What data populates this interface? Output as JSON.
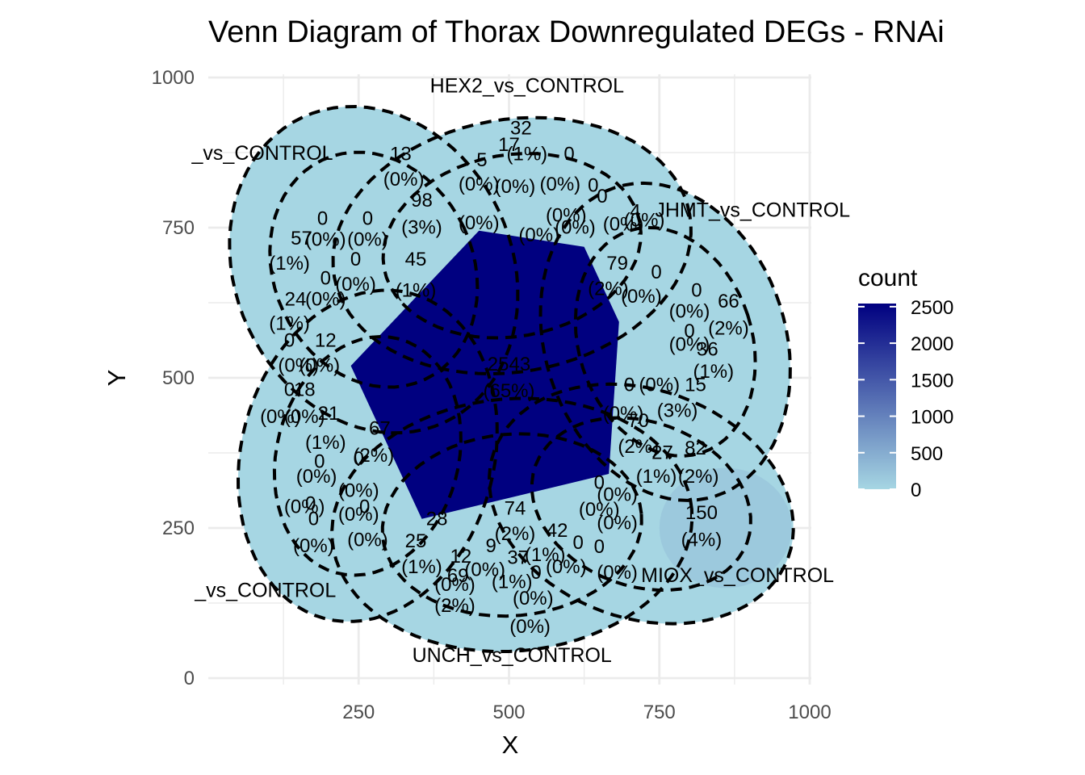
{
  "chart_data": {
    "type": "venn",
    "title": "Venn Diagram of Thorax Downregulated DEGs - RNAi",
    "xlabel": "X",
    "ylabel": "Y",
    "xlim": [
      0,
      1000
    ],
    "ylim": [
      0,
      1000
    ],
    "x_ticks": [
      "250",
      "500",
      "750",
      "1000"
    ],
    "y_ticks": [
      "0",
      "250",
      "500",
      "750",
      "1000"
    ],
    "x_tick_values": [
      250,
      500,
      750,
      1000
    ],
    "y_tick_values": [
      0,
      250,
      500,
      750,
      1000
    ],
    "set_labels": [
      {
        "text": "HEX2_vs_CONTROL",
        "x": 530,
        "y": 975
      },
      {
        "text": "JHMT_vs_CONTROL",
        "x": 905,
        "y": 768
      },
      {
        "text": "MIOX_vs_CONTROL",
        "x": 880,
        "y": 160
      },
      {
        "text": "UNCH_vs_CONTROL",
        "x": 505,
        "y": 27
      },
      {
        "text": "_vs_CONTROL",
        "x": 95,
        "y": 135
      },
      {
        "text": "_vs_CONTROL",
        "x": 90,
        "y": 863
      }
    ],
    "legend": {
      "title": "count",
      "position": "right",
      "breaks": [
        "2500",
        "2000",
        "1500",
        "1000",
        "500",
        "0"
      ],
      "break_values": [
        2500,
        2000,
        1500,
        1000,
        500,
        0
      ],
      "max": 2543,
      "low_color": "#a6d6e3",
      "high_color": "#000080"
    },
    "regions": [
      {
        "count": 2543,
        "pct": "65%"
      },
      {
        "count": 150,
        "pct": "4%"
      },
      {
        "count": 82,
        "pct": "2%"
      },
      {
        "count": 79,
        "pct": "2%"
      },
      {
        "count": 74,
        "pct": "2%"
      },
      {
        "count": 70,
        "pct": "2%"
      },
      {
        "count": 69,
        "pct": "2%"
      },
      {
        "count": 67,
        "pct": "2%"
      },
      {
        "count": 66,
        "pct": "2%"
      },
      {
        "count": 57,
        "pct": "1%"
      },
      {
        "count": 45,
        "pct": "1%"
      },
      {
        "count": 42,
        "pct": "1%"
      },
      {
        "count": 36,
        "pct": "1%"
      },
      {
        "count": 32,
        "pct": "1%"
      },
      {
        "count": 28,
        "pct": "1%"
      },
      {
        "count": 27,
        "pct": "1%"
      },
      {
        "count": 24,
        "pct": "1%"
      }
    ],
    "cell_labels": [
      {
        "text": "2543",
        "x": 500,
        "y": 512
      },
      {
        "text": "(65%)",
        "x": 500,
        "y": 468
      },
      {
        "text": "32",
        "x": 520,
        "y": 905
      },
      {
        "text": "17",
        "x": 500,
        "y": 878
      },
      {
        "text": "(1%)",
        "x": 530,
        "y": 862
      },
      {
        "text": "0",
        "x": 600,
        "y": 862
      },
      {
        "text": "13",
        "x": 320,
        "y": 862
      },
      {
        "text": "5",
        "x": 455,
        "y": 852
      },
      {
        "text": "(0%)",
        "x": 325,
        "y": 820
      },
      {
        "text": "(0%)",
        "x": 450,
        "y": 812
      },
      {
        "text": "(0%)",
        "x": 510,
        "y": 808
      },
      {
        "text": "(0%)",
        "x": 585,
        "y": 812
      },
      {
        "text": "0",
        "x": 640,
        "y": 810
      },
      {
        "text": "98",
        "x": 355,
        "y": 785
      },
      {
        "text": "(3%)",
        "x": 355,
        "y": 740
      },
      {
        "text": "(0%)",
        "x": 450,
        "y": 747
      },
      {
        "text": "(0%)",
        "x": 550,
        "y": 727
      },
      {
        "text": "(0%)",
        "x": 610,
        "y": 740
      },
      {
        "text": "0",
        "x": 190,
        "y": 755
      },
      {
        "text": "0",
        "x": 265,
        "y": 755
      },
      {
        "text": "57",
        "x": 155,
        "y": 722
      },
      {
        "text": "(0%)",
        "x": 195,
        "y": 720
      },
      {
        "text": "(0%)",
        "x": 265,
        "y": 720
      },
      {
        "text": "(1%)",
        "x": 135,
        "y": 680
      },
      {
        "text": "0",
        "x": 245,
        "y": 687
      },
      {
        "text": "45",
        "x": 345,
        "y": 687
      },
      {
        "text": "0",
        "x": 195,
        "y": 655
      },
      {
        "text": "(0%)",
        "x": 245,
        "y": 645
      },
      {
        "text": "(1%)",
        "x": 345,
        "y": 635
      },
      {
        "text": "24",
        "x": 145,
        "y": 620
      },
      {
        "text": "(0%)",
        "x": 195,
        "y": 620
      },
      {
        "text": "(1%)",
        "x": 135,
        "y": 580
      },
      {
        "text": "0",
        "x": 135,
        "y": 552
      },
      {
        "text": "12",
        "x": 195,
        "y": 552
      },
      {
        "text": "(0%)",
        "x": 150,
        "y": 510
      },
      {
        "text": "(0%)",
        "x": 185,
        "y": 510
      },
      {
        "text": "0",
        "x": 135,
        "y": 470
      },
      {
        "text": "18",
        "x": 160,
        "y": 470
      },
      {
        "text": "(0%)",
        "x": 120,
        "y": 425
      },
      {
        "text": "(0%)",
        "x": 160,
        "y": 425
      },
      {
        "text": "21",
        "x": 200,
        "y": 430
      },
      {
        "text": "67",
        "x": 285,
        "y": 405
      },
      {
        "text": "(1%)",
        "x": 195,
        "y": 382
      },
      {
        "text": "(2%)",
        "x": 275,
        "y": 360
      },
      {
        "text": "0",
        "x": 185,
        "y": 350
      },
      {
        "text": "0",
        "x": 250,
        "y": 355
      },
      {
        "text": "(0%)",
        "x": 180,
        "y": 325
      },
      {
        "text": "(0%)",
        "x": 250,
        "y": 302
      },
      {
        "text": "0",
        "x": 170,
        "y": 280
      },
      {
        "text": "0",
        "x": 260,
        "y": 275
      },
      {
        "text": "(0%)",
        "x": 160,
        "y": 275
      },
      {
        "text": "(0%)",
        "x": 250,
        "y": 262
      },
      {
        "text": "0",
        "x": 175,
        "y": 255
      },
      {
        "text": "28",
        "x": 380,
        "y": 255
      },
      {
        "text": "(0%)",
        "x": 175,
        "y": 210
      },
      {
        "text": "(0%)",
        "x": 265,
        "y": 220
      },
      {
        "text": "25",
        "x": 345,
        "y": 218
      },
      {
        "text": "74",
        "x": 510,
        "y": 272
      },
      {
        "text": "(2%)",
        "x": 510,
        "y": 230
      },
      {
        "text": "42",
        "x": 580,
        "y": 235
      },
      {
        "text": "9",
        "x": 470,
        "y": 210
      },
      {
        "text": "(1%)",
        "x": 355,
        "y": 175
      },
      {
        "text": "12",
        "x": 420,
        "y": 192
      },
      {
        "text": "(1%)",
        "x": 560,
        "y": 195
      },
      {
        "text": "0",
        "x": 615,
        "y": 215
      },
      {
        "text": "37",
        "x": 515,
        "y": 190
      },
      {
        "text": "(0%)",
        "x": 460,
        "y": 170
      },
      {
        "text": "(0%)",
        "x": 595,
        "y": 175
      },
      {
        "text": "(1%)",
        "x": 505,
        "y": 150
      },
      {
        "text": "69",
        "x": 415,
        "y": 160
      },
      {
        "text": "0",
        "x": 545,
        "y": 165
      },
      {
        "text": "(0%)",
        "x": 410,
        "y": 145
      },
      {
        "text": "(2%)",
        "x": 410,
        "y": 110
      },
      {
        "text": "(0%)",
        "x": 540,
        "y": 122
      },
      {
        "text": "(0%)",
        "x": 535,
        "y": 75
      },
      {
        "text": "0",
        "x": 650,
        "y": 315
      },
      {
        "text": "0",
        "x": 650,
        "y": 208
      },
      {
        "text": "(0%)",
        "x": 650,
        "y": 270
      },
      {
        "text": "(0%)",
        "x": 680,
        "y": 248
      },
      {
        "text": "(0%)",
        "x": 680,
        "y": 165
      },
      {
        "text": "79",
        "x": 680,
        "y": 680
      },
      {
        "text": "(2%)",
        "x": 665,
        "y": 638
      },
      {
        "text": "0",
        "x": 745,
        "y": 665
      },
      {
        "text": "0",
        "x": 812,
        "y": 635
      },
      {
        "text": "(0%)",
        "x": 720,
        "y": 625
      },
      {
        "text": "(0%)",
        "x": 800,
        "y": 600
      },
      {
        "text": "66",
        "x": 865,
        "y": 617
      },
      {
        "text": "(2%)",
        "x": 865,
        "y": 572
      },
      {
        "text": "0",
        "x": 800,
        "y": 567
      },
      {
        "text": "(0%)",
        "x": 800,
        "y": 545
      },
      {
        "text": "36",
        "x": 830,
        "y": 537
      },
      {
        "text": "(1%)",
        "x": 840,
        "y": 500
      },
      {
        "text": "0",
        "x": 700,
        "y": 478
      },
      {
        "text": "(0%)",
        "x": 750,
        "y": 478
      },
      {
        "text": "15",
        "x": 810,
        "y": 478
      },
      {
        "text": "(0%)",
        "x": 690,
        "y": 430
      },
      {
        "text": "70",
        "x": 715,
        "y": 418
      },
      {
        "text": "(3%)",
        "x": 780,
        "y": 435
      },
      {
        "text": "(2%)",
        "x": 715,
        "y": 375
      },
      {
        "text": "27",
        "x": 755,
        "y": 365
      },
      {
        "text": "82",
        "x": 810,
        "y": 372
      },
      {
        "text": "(1%)",
        "x": 745,
        "y": 325
      },
      {
        "text": "(2%)",
        "x": 815,
        "y": 325
      },
      {
        "text": "150",
        "x": 820,
        "y": 265
      },
      {
        "text": "(4%)",
        "x": 820,
        "y": 220
      },
      {
        "text": "(0%)",
        "x": 680,
        "y": 295
      },
      {
        "text": "(0%)",
        "x": 595,
        "y": 760
      },
      {
        "text": "0",
        "x": 655,
        "y": 792
      },
      {
        "text": "(0%)",
        "x": 690,
        "y": 745
      },
      {
        "text": "(0%)",
        "x": 725,
        "y": 752
      },
      {
        "text": "4",
        "x": 710,
        "y": 767
      }
    ]
  }
}
